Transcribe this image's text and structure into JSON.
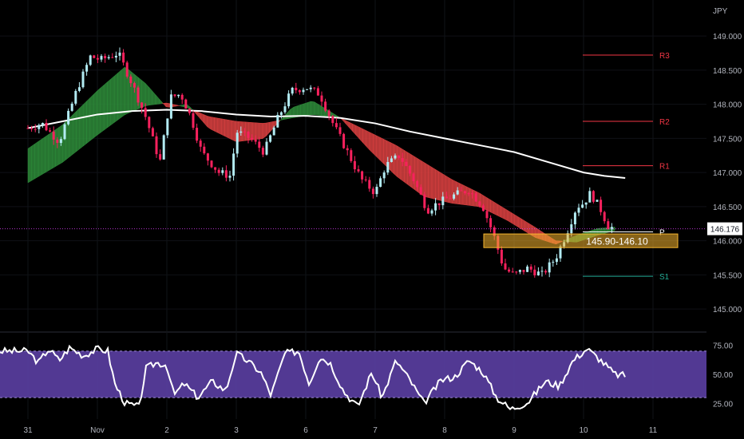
{
  "currency_label": "JPY",
  "chart_data": [
    {
      "type": "candlestick",
      "symbol_currency": "JPY",
      "x_ticks": [
        "31",
        "Nov",
        "2",
        "3",
        "6",
        "7",
        "8",
        "9",
        "10",
        "11"
      ],
      "y_ticks": [
        "145.000",
        "145.500",
        "146.000",
        "146.500",
        "147.000",
        "147.500",
        "148.000",
        "148.500",
        "149.000"
      ],
      "ylim": [
        144.85,
        149.2
      ],
      "last_price": "146.176",
      "price_path": [
        {
          "x": 0.0,
          "y": 147.65
        },
        {
          "x": 0.2,
          "y": 147.72
        },
        {
          "x": 0.45,
          "y": 147.45
        },
        {
          "x": 0.7,
          "y": 148.2
        },
        {
          "x": 0.9,
          "y": 148.7
        },
        {
          "x": 1.05,
          "y": 148.65
        },
        {
          "x": 1.3,
          "y": 148.75
        },
        {
          "x": 1.5,
          "y": 148.3
        },
        {
          "x": 1.7,
          "y": 147.8
        },
        {
          "x": 1.9,
          "y": 147.15
        },
        {
          "x": 2.05,
          "y": 148.1
        },
        {
          "x": 2.2,
          "y": 148.15
        },
        {
          "x": 2.35,
          "y": 147.8
        },
        {
          "x": 2.5,
          "y": 147.3
        },
        {
          "x": 2.75,
          "y": 147.0
        },
        {
          "x": 2.92,
          "y": 146.95
        },
        {
          "x": 3.0,
          "y": 147.6
        },
        {
          "x": 3.2,
          "y": 147.5
        },
        {
          "x": 3.4,
          "y": 147.3
        },
        {
          "x": 3.6,
          "y": 147.8
        },
        {
          "x": 3.8,
          "y": 148.2
        },
        {
          "x": 4.0,
          "y": 148.25
        },
        {
          "x": 4.2,
          "y": 148.15
        },
        {
          "x": 4.4,
          "y": 147.7
        },
        {
          "x": 4.6,
          "y": 147.3
        },
        {
          "x": 4.8,
          "y": 146.9
        },
        {
          "x": 5.0,
          "y": 146.7
        },
        {
          "x": 5.15,
          "y": 147.1
        },
        {
          "x": 5.35,
          "y": 147.25
        },
        {
          "x": 5.55,
          "y": 146.9
        },
        {
          "x": 5.75,
          "y": 146.45
        },
        {
          "x": 5.9,
          "y": 146.55
        },
        {
          "x": 6.1,
          "y": 146.65
        },
        {
          "x": 6.35,
          "y": 146.75
        },
        {
          "x": 6.55,
          "y": 146.5
        },
        {
          "x": 6.7,
          "y": 146.1
        },
        {
          "x": 6.85,
          "y": 145.6
        },
        {
          "x": 7.0,
          "y": 145.5
        },
        {
          "x": 7.2,
          "y": 145.6
        },
        {
          "x": 7.4,
          "y": 145.5
        },
        {
          "x": 7.6,
          "y": 145.75
        },
        {
          "x": 7.75,
          "y": 146.1
        },
        {
          "x": 7.9,
          "y": 146.5
        },
        {
          "x": 8.0,
          "y": 146.55
        },
        {
          "x": 8.1,
          "y": 146.7
        },
        {
          "x": 8.25,
          "y": 146.45
        },
        {
          "x": 8.35,
          "y": 146.22
        },
        {
          "x": 8.45,
          "y": 146.176
        }
      ],
      "ma_fast": [
        {
          "x": 0.0,
          "y": 147.35
        },
        {
          "x": 0.5,
          "y": 147.7
        },
        {
          "x": 1.0,
          "y": 148.2
        },
        {
          "x": 1.4,
          "y": 148.55
        },
        {
          "x": 1.7,
          "y": 148.3
        },
        {
          "x": 2.0,
          "y": 147.95
        },
        {
          "x": 2.3,
          "y": 148.0
        },
        {
          "x": 2.6,
          "y": 147.65
        },
        {
          "x": 3.0,
          "y": 147.45
        },
        {
          "x": 3.4,
          "y": 147.5
        },
        {
          "x": 3.8,
          "y": 147.95
        },
        {
          "x": 4.1,
          "y": 148.05
        },
        {
          "x": 4.5,
          "y": 147.8
        },
        {
          "x": 4.9,
          "y": 147.35
        },
        {
          "x": 5.3,
          "y": 146.95
        },
        {
          "x": 5.7,
          "y": 146.65
        },
        {
          "x": 6.1,
          "y": 146.55
        },
        {
          "x": 6.5,
          "y": 146.5
        },
        {
          "x": 6.9,
          "y": 146.3
        },
        {
          "x": 7.3,
          "y": 146.05
        },
        {
          "x": 7.6,
          "y": 145.95
        },
        {
          "x": 7.9,
          "y": 146.08
        },
        {
          "x": 8.2,
          "y": 146.18
        },
        {
          "x": 8.45,
          "y": 146.2
        }
      ],
      "ma_slow": [
        {
          "x": 0.0,
          "y": 146.85
        },
        {
          "x": 0.5,
          "y": 147.15
        },
        {
          "x": 1.0,
          "y": 147.55
        },
        {
          "x": 1.4,
          "y": 147.85
        },
        {
          "x": 1.7,
          "y": 147.98
        },
        {
          "x": 2.0,
          "y": 148.02
        },
        {
          "x": 2.3,
          "y": 147.95
        },
        {
          "x": 2.6,
          "y": 147.82
        },
        {
          "x": 3.0,
          "y": 147.75
        },
        {
          "x": 3.4,
          "y": 147.72
        },
        {
          "x": 3.8,
          "y": 147.8
        },
        {
          "x": 4.1,
          "y": 147.85
        },
        {
          "x": 4.5,
          "y": 147.8
        },
        {
          "x": 4.9,
          "y": 147.6
        },
        {
          "x": 5.3,
          "y": 147.4
        },
        {
          "x": 5.7,
          "y": 147.15
        },
        {
          "x": 6.1,
          "y": 146.9
        },
        {
          "x": 6.5,
          "y": 146.7
        },
        {
          "x": 6.9,
          "y": 146.45
        },
        {
          "x": 7.3,
          "y": 146.2
        },
        {
          "x": 7.6,
          "y": 146.0
        },
        {
          "x": 7.9,
          "y": 145.98
        },
        {
          "x": 8.2,
          "y": 146.08
        },
        {
          "x": 8.45,
          "y": 146.15
        }
      ],
      "ma_long": [
        {
          "x": 0.0,
          "y": 147.65
        },
        {
          "x": 0.5,
          "y": 147.75
        },
        {
          "x": 1.0,
          "y": 147.85
        },
        {
          "x": 1.5,
          "y": 147.9
        },
        {
          "x": 2.0,
          "y": 147.92
        },
        {
          "x": 2.5,
          "y": 147.9
        },
        {
          "x": 3.0,
          "y": 147.85
        },
        {
          "x": 3.5,
          "y": 147.82
        },
        {
          "x": 4.0,
          "y": 147.83
        },
        {
          "x": 4.5,
          "y": 147.8
        },
        {
          "x": 5.0,
          "y": 147.72
        },
        {
          "x": 5.5,
          "y": 147.6
        },
        {
          "x": 6.0,
          "y": 147.5
        },
        {
          "x": 6.5,
          "y": 147.4
        },
        {
          "x": 7.0,
          "y": 147.3
        },
        {
          "x": 7.5,
          "y": 147.15
        },
        {
          "x": 8.0,
          "y": 147.0
        },
        {
          "x": 8.3,
          "y": 146.95
        },
        {
          "x": 8.6,
          "y": 146.92
        }
      ],
      "levels": [
        {
          "name": "R3",
          "value": 148.72,
          "color": "#f23645"
        },
        {
          "name": "R2",
          "value": 147.75,
          "color": "#f23645"
        },
        {
          "name": "R1",
          "value": 147.1,
          "color": "#f23645"
        },
        {
          "name": "P",
          "value": 146.13,
          "color": "#ffffff"
        },
        {
          "name": "S1",
          "value": 145.48,
          "color": "#22ab94"
        }
      ],
      "zone": {
        "label": "145.90-146.10",
        "from": 145.9,
        "to": 146.1,
        "color": "#f5b52e"
      },
      "colors": {
        "up": "#b2ebf2",
        "down": "#f7215d",
        "bull_cloud": "#2e8b3a",
        "bear_cloud": "#d94141",
        "long_ma": "#ffffff",
        "price_line": "#e040fb"
      }
    },
    {
      "type": "line",
      "indicator": "oscillator",
      "y_ticks": [
        "25.00",
        "50.00",
        "75.00"
      ],
      "ylim": [
        15,
        85
      ],
      "band": [
        30,
        70
      ],
      "band_color": "#5b3fa3",
      "values": [
        {
          "x": 0.0,
          "y": 70
        },
        {
          "x": 0.15,
          "y": 60
        },
        {
          "x": 0.3,
          "y": 72
        },
        {
          "x": 0.45,
          "y": 62
        },
        {
          "x": 0.6,
          "y": 73
        },
        {
          "x": 0.8,
          "y": 66
        },
        {
          "x": 1.0,
          "y": 72
        },
        {
          "x": 1.15,
          "y": 70
        },
        {
          "x": 1.25,
          "y": 42
        },
        {
          "x": 1.4,
          "y": 25
        },
        {
          "x": 1.6,
          "y": 22
        },
        {
          "x": 1.7,
          "y": 55
        },
        {
          "x": 1.85,
          "y": 60
        },
        {
          "x": 2.0,
          "y": 58
        },
        {
          "x": 2.1,
          "y": 32
        },
        {
          "x": 2.25,
          "y": 42
        },
        {
          "x": 2.45,
          "y": 30
        },
        {
          "x": 2.65,
          "y": 44
        },
        {
          "x": 2.85,
          "y": 36
        },
        {
          "x": 3.0,
          "y": 68
        },
        {
          "x": 3.15,
          "y": 62
        },
        {
          "x": 3.35,
          "y": 52
        },
        {
          "x": 3.5,
          "y": 32
        },
        {
          "x": 3.7,
          "y": 68
        },
        {
          "x": 3.9,
          "y": 70
        },
        {
          "x": 4.05,
          "y": 42
        },
        {
          "x": 4.2,
          "y": 65
        },
        {
          "x": 4.35,
          "y": 60
        },
        {
          "x": 4.55,
          "y": 35
        },
        {
          "x": 4.75,
          "y": 22
        },
        {
          "x": 4.95,
          "y": 52
        },
        {
          "x": 5.1,
          "y": 30
        },
        {
          "x": 5.3,
          "y": 62
        },
        {
          "x": 5.5,
          "y": 45
        },
        {
          "x": 5.7,
          "y": 25
        },
        {
          "x": 5.95,
          "y": 45
        },
        {
          "x": 6.15,
          "y": 48
        },
        {
          "x": 6.35,
          "y": 62
        },
        {
          "x": 6.55,
          "y": 52
        },
        {
          "x": 6.75,
          "y": 30
        },
        {
          "x": 6.95,
          "y": 20
        },
        {
          "x": 7.2,
          "y": 26
        },
        {
          "x": 7.45,
          "y": 44
        },
        {
          "x": 7.65,
          "y": 40
        },
        {
          "x": 7.85,
          "y": 62
        },
        {
          "x": 8.05,
          "y": 72
        },
        {
          "x": 8.25,
          "y": 62
        },
        {
          "x": 8.45,
          "y": 50
        },
        {
          "x": 8.6,
          "y": 49
        }
      ]
    }
  ]
}
